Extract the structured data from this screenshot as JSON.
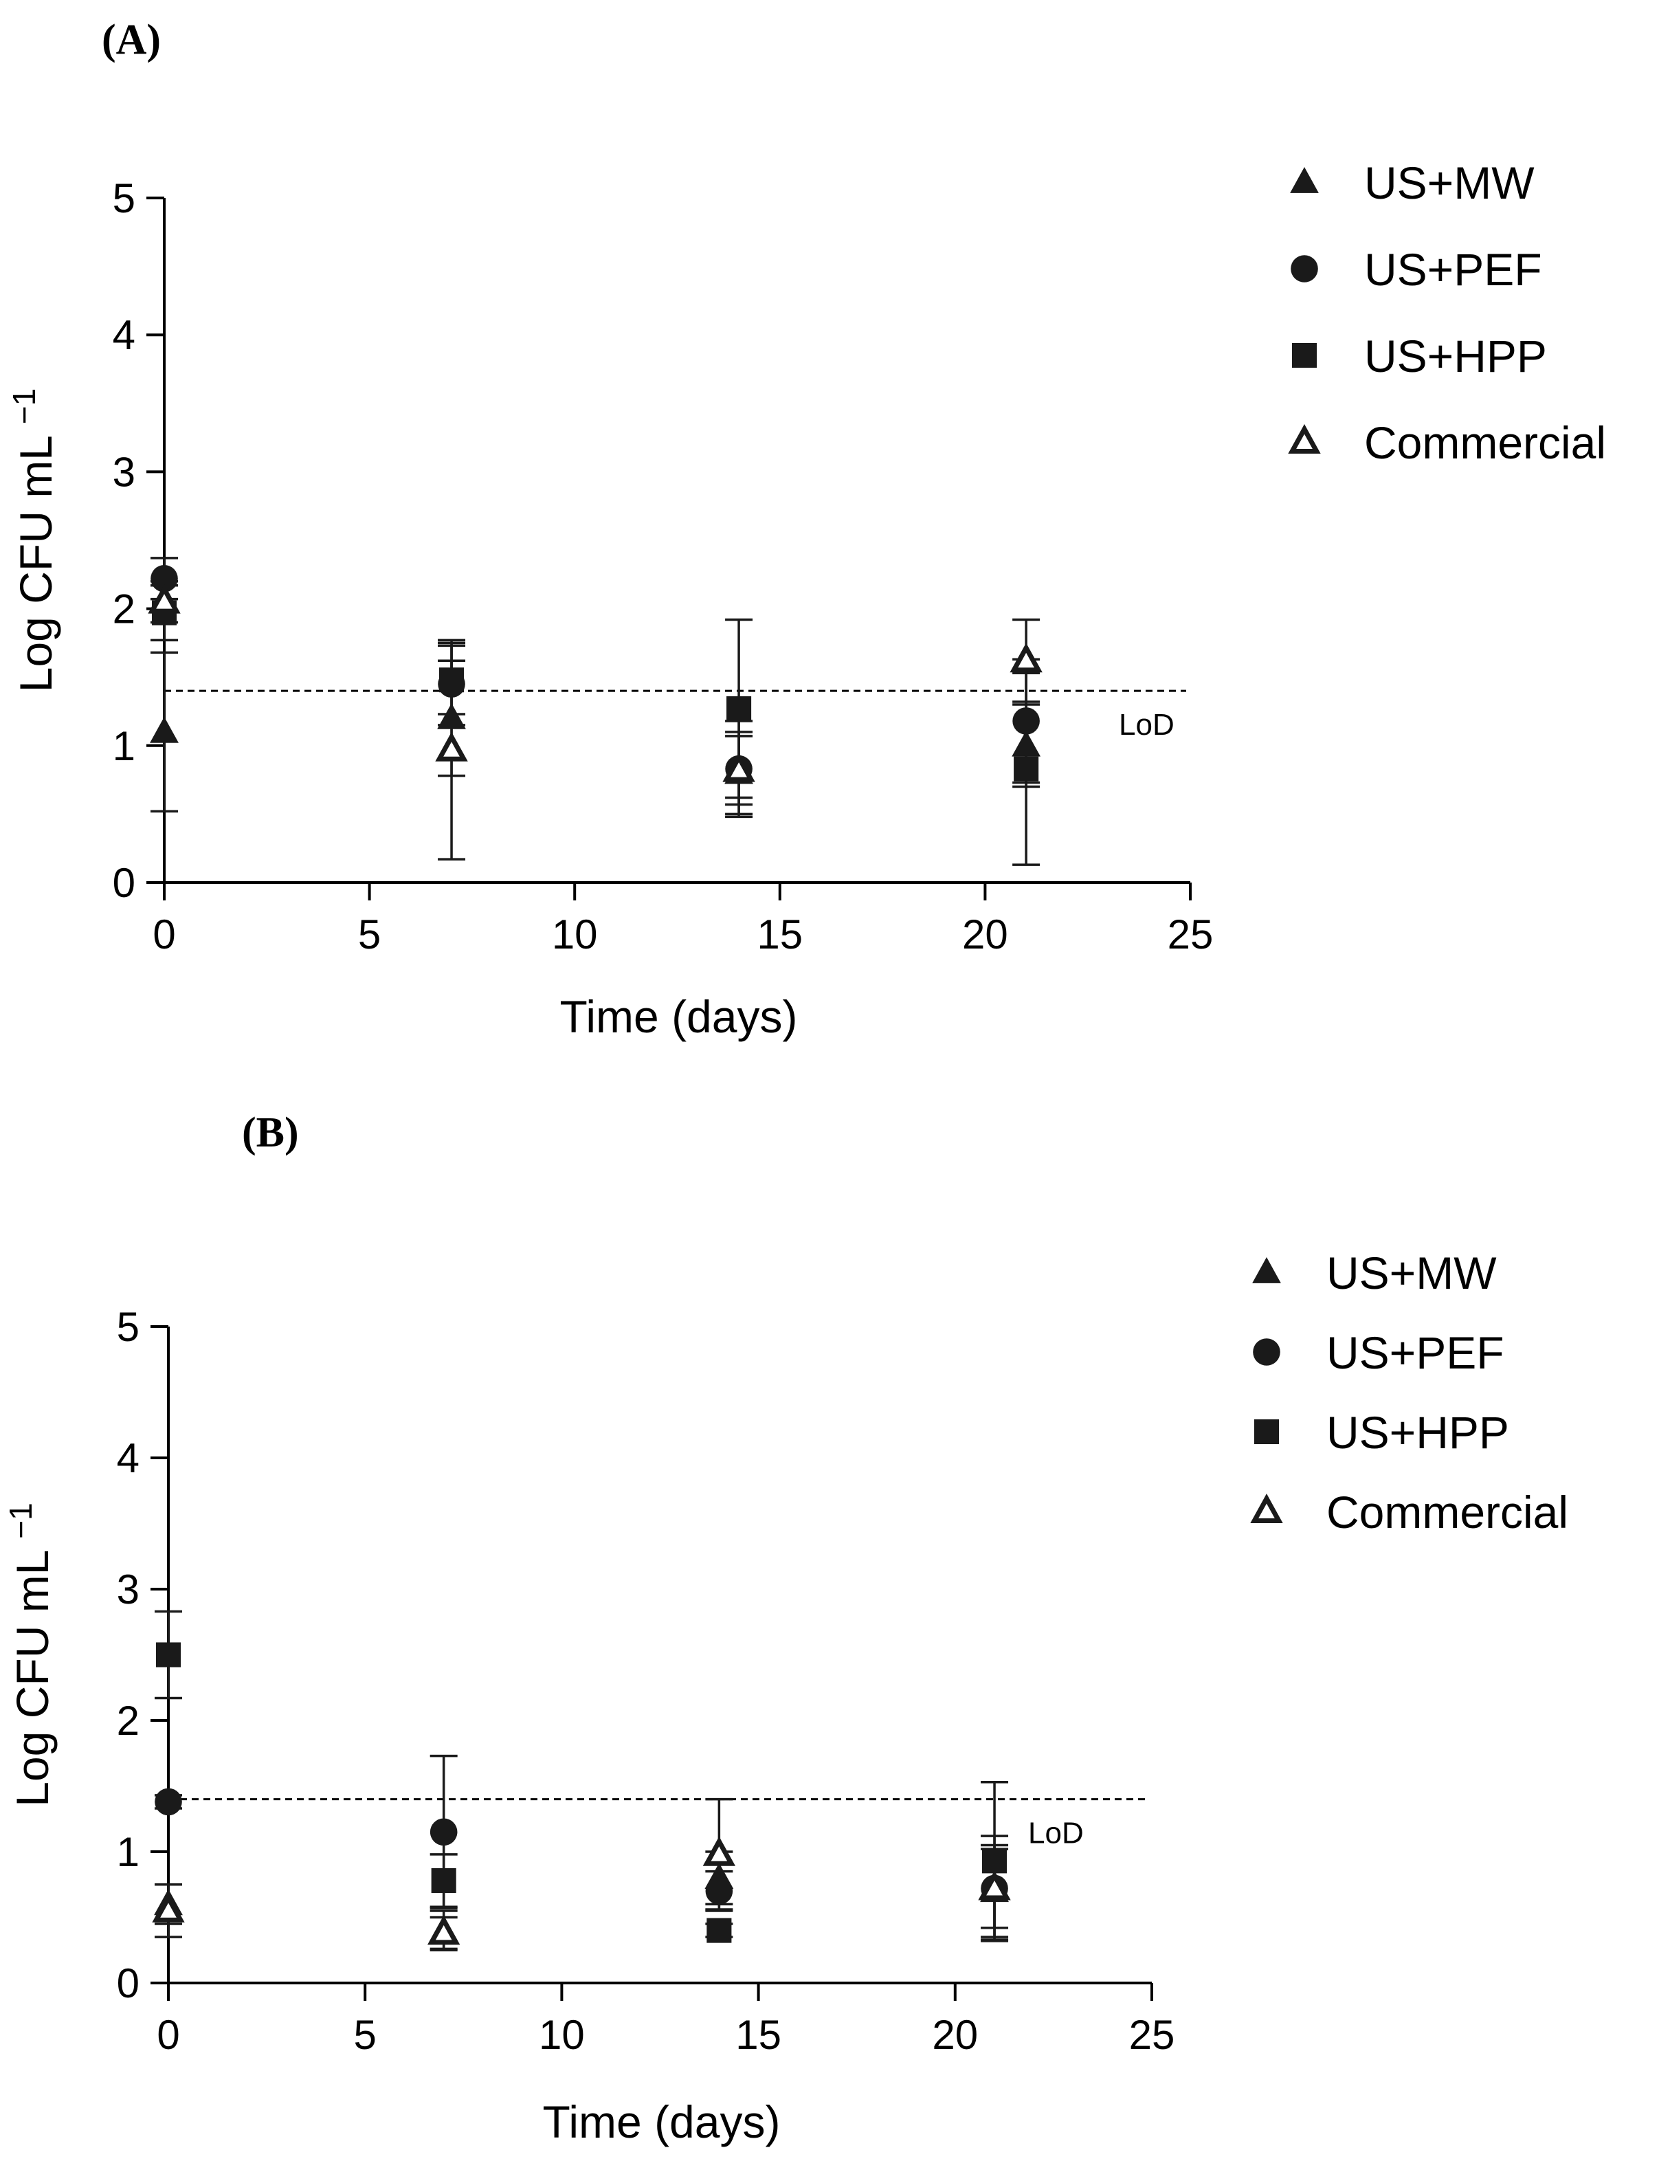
{
  "chart_data": [
    {
      "panel": "(A)",
      "type": "scatter",
      "xlabel": "Time (days)",
      "ylabel": "Log CFU mL",
      "ylabel_sup": "−1",
      "xlim": [
        0,
        25
      ],
      "ylim": [
        0,
        5
      ],
      "xticks": [
        0,
        5,
        10,
        15,
        20,
        25
      ],
      "yticks": [
        0,
        1,
        2,
        3,
        4,
        5
      ],
      "lod": {
        "value": 1.4,
        "label": "LoD"
      },
      "series": [
        {
          "name": "US+MW",
          "marker": "triangle-filled",
          "x": [
            0,
            7,
            14,
            21
          ],
          "y": [
            1.1,
            1.2,
            0.8,
            1.0
          ],
          "err": [
            0.58,
            0.42,
            0.3,
            0.3
          ]
        },
        {
          "name": "US+PEF",
          "marker": "circle-filled",
          "x": [
            0,
            7,
            14,
            21
          ],
          "y": [
            2.22,
            1.45,
            0.83,
            1.18
          ],
          "err": [
            0.15,
            0.3,
            0.35,
            0.45
          ]
        },
        {
          "name": "US+HPP",
          "marker": "square-filled",
          "x": [
            0,
            7,
            14,
            21
          ],
          "y": [
            1.97,
            1.48,
            1.27,
            0.83
          ],
          "err": [
            0.2,
            0.25,
            0.65,
            0.7
          ]
        },
        {
          "name": "Commercial",
          "marker": "triangle-open",
          "x": [
            0,
            7,
            14,
            21
          ],
          "y": [
            2.05,
            0.97,
            0.82,
            1.62
          ],
          "err": [
            0.15,
            0.8,
            0.25,
            0.3
          ]
        }
      ]
    },
    {
      "panel": "(B)",
      "type": "scatter",
      "xlabel": "Time (days)",
      "ylabel": "Log CFU mL",
      "ylabel_sup": "−1",
      "xlim": [
        0,
        25
      ],
      "ylim": [
        0,
        5
      ],
      "xticks": [
        0,
        5,
        10,
        15,
        20,
        25
      ],
      "yticks": [
        0,
        1,
        2,
        3,
        4,
        5
      ],
      "lod": {
        "value": 1.4,
        "label": "LoD"
      },
      "series": [
        {
          "name": "US+MW",
          "marker": "triangle-filled",
          "x": [
            0,
            7,
            14,
            21
          ],
          "y": [
            0.6,
            0.4,
            0.8,
            0.7
          ],
          "err": [
            0.15,
            0.15,
            0.2,
            0.35
          ]
        },
        {
          "name": "US+PEF",
          "marker": "circle-filled",
          "x": [
            0,
            7,
            14,
            21
          ],
          "y": [
            1.38,
            1.15,
            0.7,
            0.72
          ],
          "err": [
            0.05,
            0.58,
            0.15,
            0.4
          ]
        },
        {
          "name": "US+HPP",
          "marker": "square-filled",
          "x": [
            0,
            7,
            14,
            21
          ],
          "y": [
            2.5,
            0.78,
            0.4,
            0.93
          ],
          "err": [
            0.33,
            0.2,
            0.05,
            0.6
          ]
        },
        {
          "name": "Commercial",
          "marker": "triangle-open",
          "x": [
            0,
            7,
            14,
            21
          ],
          "y": [
            0.55,
            0.38,
            0.98,
            0.72
          ],
          "err": [
            0.2,
            0.12,
            0.42,
            0.3
          ]
        }
      ]
    }
  ]
}
